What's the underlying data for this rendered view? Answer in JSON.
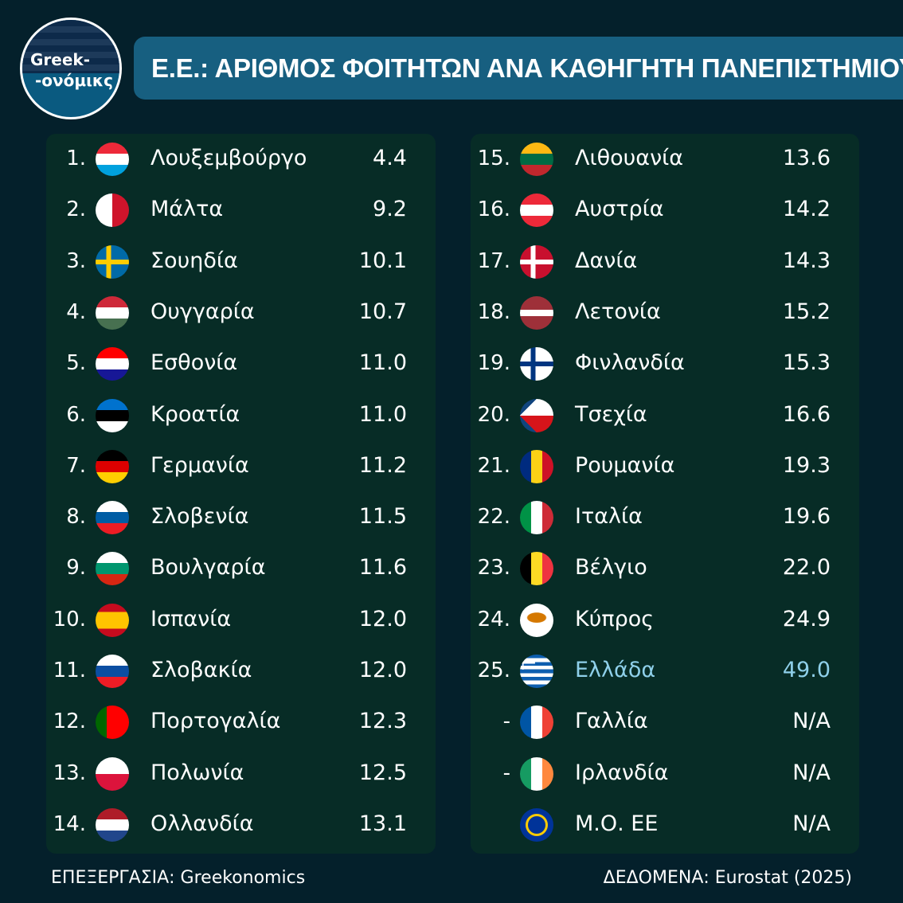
{
  "logo": {
    "line1": "Greek-",
    "line2": "-ονόμικς"
  },
  "title": "Ε.Ε.: ΑΡΙΘΜΟΣ ΦΟΙΤΗΤΩΝ ΑΝΑ ΚΑΘΗΓΗΤΗ ΠΑΝΕΠΙΣΤΗΜΙΟΥ",
  "highlight_color": "#8fd0ea",
  "left": [
    {
      "rank": "1.",
      "name": "Λουξεμβούργο",
      "value": "4.4",
      "flag": {
        "type": "h",
        "colors": [
          "#ed2939",
          "#ffffff",
          "#00a1de"
        ]
      }
    },
    {
      "rank": "2.",
      "name": "Μάλτα",
      "value": "9.2",
      "flag": {
        "type": "v",
        "colors": [
          "#ffffff",
          "#cf142b"
        ]
      }
    },
    {
      "rank": "3.",
      "name": "Σουηδία",
      "value": "10.1",
      "flag": {
        "type": "cross",
        "colors": [
          "#006aa7",
          "#fecc00"
        ]
      }
    },
    {
      "rank": "4.",
      "name": "Ουγγαρία",
      "value": "10.7",
      "flag": {
        "type": "h",
        "colors": [
          "#ce2939",
          "#ffffff",
          "#477050"
        ]
      }
    },
    {
      "rank": "5.",
      "name": "Εσθονία",
      "value": "11.0",
      "flag": {
        "type": "h",
        "colors": [
          "#ff0000",
          "#ffffff",
          "#171796"
        ]
      }
    },
    {
      "rank": "6.",
      "name": "Κροατία",
      "value": "11.0",
      "flag": {
        "type": "h",
        "colors": [
          "#0072ce",
          "#000000",
          "#ffffff"
        ]
      }
    },
    {
      "rank": "7.",
      "name": "Γερμανία",
      "value": "11.2",
      "flag": {
        "type": "h",
        "colors": [
          "#000000",
          "#dd0000",
          "#ffce00"
        ]
      }
    },
    {
      "rank": "8.",
      "name": "Σλοβενία",
      "value": "11.5",
      "flag": {
        "type": "h",
        "colors": [
          "#ffffff",
          "#005da4",
          "#ed1c24"
        ]
      }
    },
    {
      "rank": "9.",
      "name": "Βουλγαρία",
      "value": "11.6",
      "flag": {
        "type": "h",
        "colors": [
          "#ffffff",
          "#00966e",
          "#d62612"
        ]
      }
    },
    {
      "rank": "10.",
      "name": "Ισπανία",
      "value": "12.0",
      "flag": {
        "type": "h",
        "colors": [
          "#c60b1e",
          "#ffc400",
          "#ffc400",
          "#c60b1e"
        ]
      }
    },
    {
      "rank": "11.",
      "name": "Σλοβακία",
      "value": "12.0",
      "flag": {
        "type": "h",
        "colors": [
          "#ffffff",
          "#0b4ea2",
          "#ee1c25"
        ]
      }
    },
    {
      "rank": "12.",
      "name": "Πορτογαλία",
      "value": "12.3",
      "flag": {
        "type": "v",
        "colors": [
          "#006600",
          "#ff0000",
          "#ff0000"
        ]
      }
    },
    {
      "rank": "13.",
      "name": "Πολωνία",
      "value": "12.5",
      "flag": {
        "type": "h",
        "colors": [
          "#ffffff",
          "#dc143c"
        ]
      }
    },
    {
      "rank": "14.",
      "name": "Ολλανδία",
      "value": "13.1",
      "flag": {
        "type": "h",
        "colors": [
          "#ae1c28",
          "#ffffff",
          "#21468b"
        ]
      }
    }
  ],
  "right": [
    {
      "rank": "15.",
      "name": "Λιθουανία",
      "value": "13.6",
      "flag": {
        "type": "h",
        "colors": [
          "#fdb913",
          "#006a44",
          "#c1272d"
        ]
      }
    },
    {
      "rank": "16.",
      "name": "Αυστρία",
      "value": "14.2",
      "flag": {
        "type": "h",
        "colors": [
          "#ed2939",
          "#ffffff",
          "#ed2939"
        ]
      }
    },
    {
      "rank": "17.",
      "name": "Δανία",
      "value": "14.3",
      "flag": {
        "type": "cross",
        "colors": [
          "#c8102e",
          "#ffffff"
        ]
      }
    },
    {
      "rank": "18.",
      "name": "Λετονία",
      "value": "15.2",
      "flag": {
        "type": "h",
        "colors": [
          "#9e3039",
          "#9e3039",
          "#ffffff",
          "#9e3039",
          "#9e3039"
        ]
      }
    },
    {
      "rank": "19.",
      "name": "Φινλανδία",
      "value": "15.3",
      "flag": {
        "type": "cross",
        "colors": [
          "#ffffff",
          "#003580"
        ]
      }
    },
    {
      "rank": "20.",
      "name": "Τσεχία",
      "value": "16.6",
      "flag": {
        "type": "czech",
        "colors": [
          "#ffffff",
          "#d7141a",
          "#11457e"
        ]
      }
    },
    {
      "rank": "21.",
      "name": "Ρουμανία",
      "value": "19.3",
      "flag": {
        "type": "v",
        "colors": [
          "#002b7f",
          "#fcd116",
          "#ce1126"
        ]
      }
    },
    {
      "rank": "22.",
      "name": "Ιταλία",
      "value": "19.6",
      "flag": {
        "type": "v",
        "colors": [
          "#009246",
          "#ffffff",
          "#ce2b37"
        ]
      }
    },
    {
      "rank": "23.",
      "name": "Βέλγιο",
      "value": "22.0",
      "flag": {
        "type": "v",
        "colors": [
          "#000000",
          "#fdda24",
          "#ef3340"
        ]
      }
    },
    {
      "rank": "24.",
      "name": "Κύπρος",
      "value": "24.9",
      "flag": {
        "type": "cyprus",
        "colors": [
          "#ffffff",
          "#d57800"
        ]
      }
    },
    {
      "rank": "25.",
      "name": "Ελλάδα",
      "value": "49.0",
      "highlight": true,
      "flag": {
        "type": "greece",
        "colors": [
          "#0d5eaf",
          "#ffffff"
        ]
      }
    },
    {
      "rank": "-",
      "name": "Γαλλία",
      "value": "N/A",
      "flag": {
        "type": "v",
        "colors": [
          "#0055a4",
          "#ffffff",
          "#ef4135"
        ]
      }
    },
    {
      "rank": "-",
      "name": "Ιρλανδία",
      "value": "N/A",
      "flag": {
        "type": "v",
        "colors": [
          "#169b62",
          "#ffffff",
          "#ff883e"
        ]
      }
    },
    {
      "rank": "",
      "name": "Μ.Ο. ΕΕ",
      "value": "N/A",
      "flag": {
        "type": "eu",
        "colors": [
          "#003399",
          "#ffcc00"
        ]
      }
    }
  ],
  "footer": {
    "left": "ΕΠΕΞΕΡΓΑΣΙΑ: Greekonomics",
    "right": "ΔΕΔΟΜΕΝΑ: Eurostat (2025)"
  }
}
